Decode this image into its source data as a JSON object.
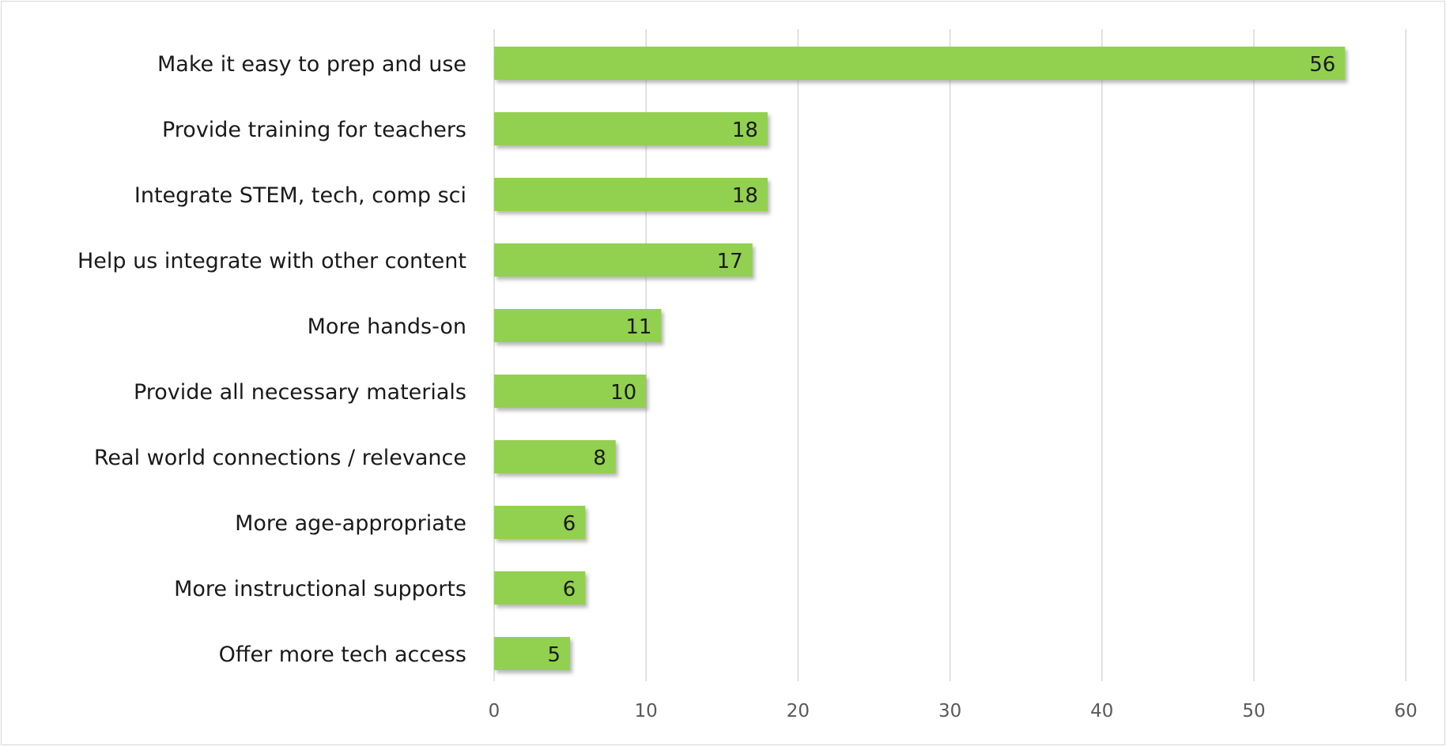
{
  "chart_data": {
    "type": "bar",
    "orientation": "horizontal",
    "title": "",
    "xlabel": "",
    "ylabel": "",
    "categories": [
      "Make it easy to prep and use",
      "Provide training for teachers",
      "Integrate STEM, tech, comp sci",
      "Help us integrate with other content",
      "More hands-on",
      "Provide all necessary materials",
      "Real world connections / relevance",
      "More age-appropriate",
      "More instructional supports",
      "Offer more tech access"
    ],
    "values": [
      56,
      18,
      18,
      17,
      11,
      10,
      8,
      6,
      6,
      5
    ],
    "xlim": [
      0,
      60
    ],
    "xticks": [
      0,
      10,
      20,
      30,
      40,
      50,
      60
    ],
    "grid": true,
    "legend": "none",
    "data_labels": true,
    "colors": {
      "bar": "#92d050",
      "bar_shadow": "#9a9a9a",
      "gridline": "#d9d9d9",
      "text": "#1a1a1a",
      "tick_text": "#595959"
    }
  }
}
